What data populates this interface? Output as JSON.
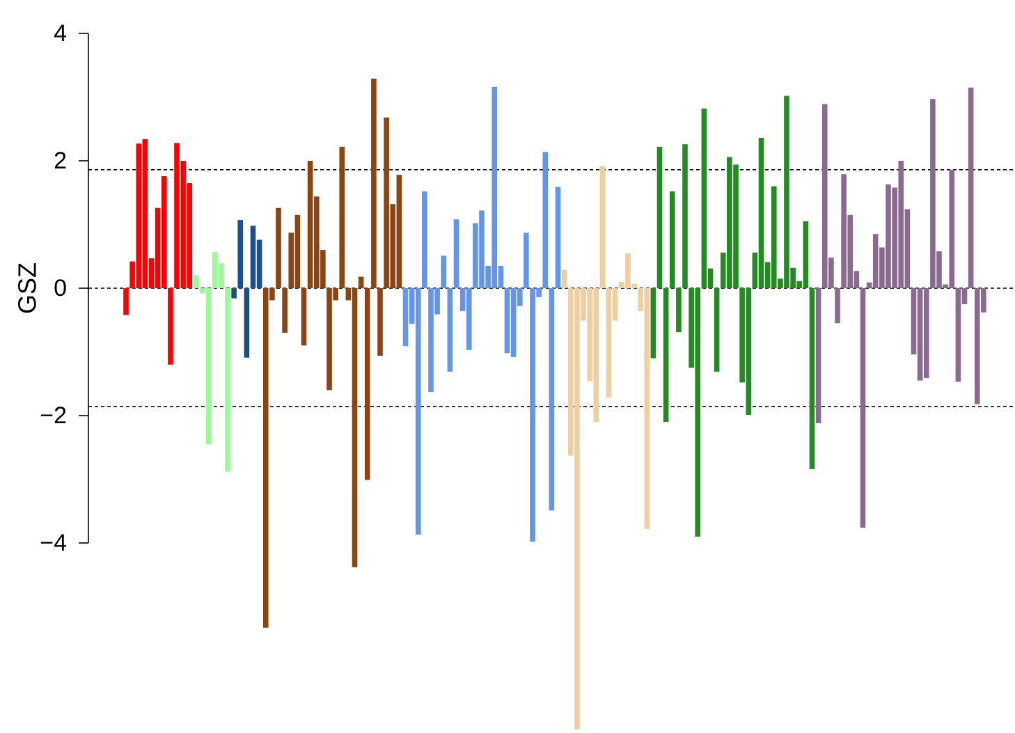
{
  "chart_data": {
    "type": "bar",
    "title": "",
    "xlabel": "",
    "ylabel": "GSZ",
    "ylim": [
      -6.8,
      4.0
    ],
    "yticks": [
      4,
      2,
      0,
      -2,
      -4
    ],
    "yticklabels": [
      "4",
      "2",
      "0",
      "−2",
      "−4"
    ],
    "reference_lines": [
      1.86,
      0,
      -1.86
    ],
    "reference_line_style": "dashed",
    "grid": false,
    "legend": "none",
    "groups": [
      {
        "color": "#FF0000",
        "values": [
          -0.42,
          0.42,
          2.27,
          2.34,
          0.47,
          1.26,
          1.76,
          -1.2,
          2.28,
          2.0,
          1.65
        ]
      },
      {
        "color": "#98FB98",
        "values": [
          0.2,
          -0.08,
          -2.45,
          0.57,
          0.39,
          -2.88
        ]
      },
      {
        "color": "#1C4F8C",
        "values": [
          -0.16,
          1.07,
          -1.09,
          0.98,
          0.76
        ]
      },
      {
        "color": "#8B4513",
        "values": [
          -5.33,
          -0.19,
          1.26,
          -0.7,
          0.87,
          1.15,
          -0.9,
          2.0,
          1.44,
          0.6,
          -1.6,
          -0.19,
          2.22,
          -0.19,
          -4.38,
          0.18,
          -3.01,
          3.29,
          -1.06,
          2.68,
          1.32,
          1.78
        ]
      },
      {
        "color": "#6495ED",
        "values": [
          -0.91,
          -0.56,
          -3.87,
          1.52,
          -1.63,
          -0.41,
          0.51,
          -1.31,
          1.08,
          -0.36,
          -0.97,
          1.02,
          1.22,
          0.35,
          3.16,
          0.35,
          -1.02,
          -1.08,
          -0.28,
          0.87,
          -3.98,
          -0.14,
          2.14,
          -3.49,
          1.59
        ]
      },
      {
        "color": "#EECFA1",
        "values": [
          0.29,
          -2.63,
          -6.95,
          -0.51,
          -1.46,
          -2.1,
          1.92,
          -1.72,
          -0.51,
          0.1,
          0.55,
          0.07,
          -0.36,
          -3.78
        ]
      },
      {
        "color": "#228B22",
        "values": [
          -1.1,
          2.22,
          -2.1,
          1.52,
          -0.69,
          2.26,
          -1.25,
          -3.9,
          2.82,
          0.31,
          -1.31,
          0.56,
          2.06,
          1.94,
          -1.48,
          -1.99,
          0.56,
          2.36,
          0.41,
          1.6,
          0.15,
          3.02,
          0.32,
          0.11,
          1.05,
          -2.84
        ]
      },
      {
        "color": "#8B6A8F",
        "values": [
          -2.12,
          2.89,
          0.48,
          -0.55,
          1.79,
          1.15,
          0.27,
          -3.76,
          0.09,
          0.85,
          0.64,
          1.63,
          1.58,
          2.0,
          1.24,
          -1.04,
          -1.45,
          -1.41,
          2.97,
          0.58,
          0.06,
          1.86,
          -1.47,
          -0.25,
          3.15,
          -1.82,
          -0.38
        ]
      }
    ]
  }
}
